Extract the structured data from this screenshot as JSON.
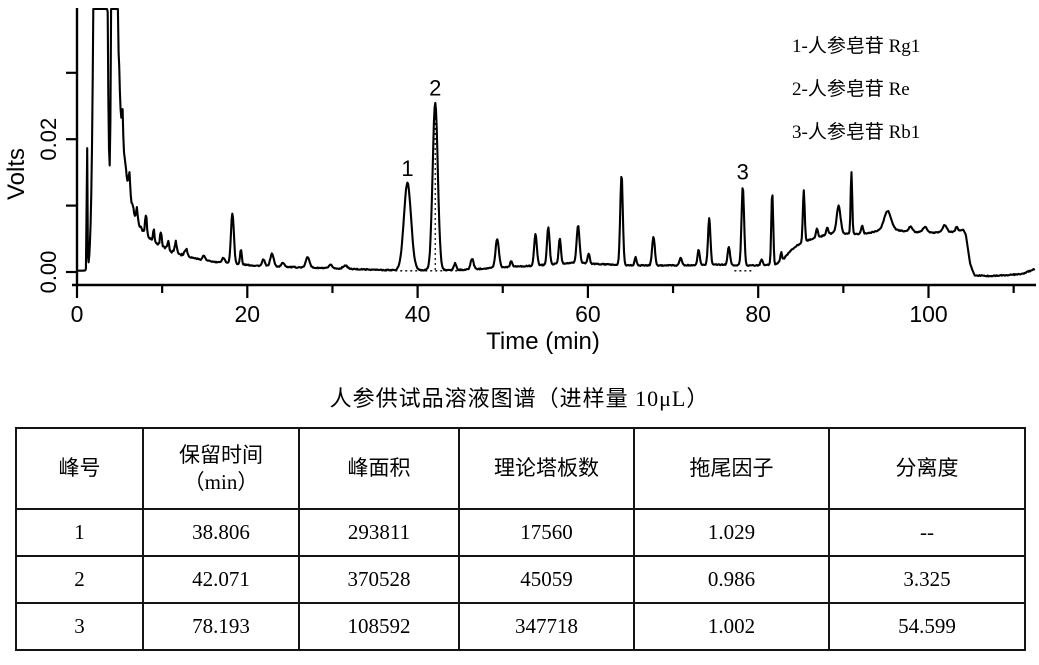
{
  "chart_data": {
    "type": "line",
    "title": "",
    "xlabel": "Time (min)",
    "ylabel": "Volts",
    "xlim": [
      0,
      112.4
    ],
    "ylim": [
      0,
      0.0398
    ],
    "grid": false,
    "line_color": "#000000",
    "legend_position": "top-right",
    "legend": [
      "1-人参皂苷 Rg1",
      "2-人参皂苷 Re",
      "3-人参皂苷 Rb1"
    ],
    "x_ticks": [
      {
        "t": 0,
        "label": "0"
      },
      {
        "t": 10
      },
      {
        "t": 20,
        "label": "20"
      },
      {
        "t": 30
      },
      {
        "t": 40,
        "label": "40"
      },
      {
        "t": 50
      },
      {
        "t": 60,
        "label": "60"
      },
      {
        "t": 70
      },
      {
        "t": 80,
        "label": "80"
      },
      {
        "t": 90
      },
      {
        "t": 100,
        "label": "100"
      },
      {
        "t": 110
      }
    ],
    "y_ticks": [
      {
        "v": 0.0,
        "label": "0.00"
      },
      {
        "v": 0.01
      },
      {
        "v": 0.02,
        "label": "0.02"
      },
      {
        "v": 0.03
      }
    ],
    "baseline_nodes": [
      [
        0,
        0.0002
      ],
      [
        1.85,
        0.0002
      ],
      [
        4.55,
        0.0005
      ],
      [
        4.95,
        0.0285
      ],
      [
        5.15,
        0.0235
      ],
      [
        5.45,
        0.0185
      ],
      [
        5.9,
        0.014
      ],
      [
        6.4,
        0.0105
      ],
      [
        6.9,
        0.0082
      ],
      [
        7.4,
        0.0068
      ],
      [
        8.0,
        0.0058
      ],
      [
        8.7,
        0.0049
      ],
      [
        9.5,
        0.0042
      ],
      [
        10.3,
        0.0036
      ],
      [
        11.2,
        0.0031
      ],
      [
        12.2,
        0.0027
      ],
      [
        13.4,
        0.0022
      ],
      [
        14.8,
        0.0018
      ],
      [
        16.2,
        0.0015
      ],
      [
        17.6,
        0.0013
      ],
      [
        19.0,
        0.0012
      ],
      [
        20.5,
        0.001
      ],
      [
        22.0,
        0.0009
      ],
      [
        24.0,
        0.0008
      ],
      [
        26.0,
        0.0007
      ],
      [
        28.5,
        0.0006
      ],
      [
        31.0,
        0.0005
      ],
      [
        33.5,
        0.0004
      ],
      [
        36.0,
        0.0003
      ],
      [
        44.5,
        0.0003
      ],
      [
        46.5,
        0.0004
      ],
      [
        48.5,
        0.0006
      ],
      [
        51.0,
        0.0008
      ],
      [
        53.0,
        0.0009
      ],
      [
        55.0,
        0.0011
      ],
      [
        57.0,
        0.0013
      ],
      [
        59.0,
        0.0014
      ],
      [
        61.0,
        0.0012
      ],
      [
        63.0,
        0.0011
      ],
      [
        65.0,
        0.001
      ],
      [
        68.0,
        0.001
      ],
      [
        71.0,
        0.001
      ],
      [
        74.0,
        0.0011
      ],
      [
        76.0,
        0.0011
      ],
      [
        78.0,
        0.001
      ],
      [
        80.0,
        0.001
      ],
      [
        82.0,
        0.0011
      ],
      [
        83.0,
        0.002
      ],
      [
        83.8,
        0.0032
      ],
      [
        84.6,
        0.004
      ],
      [
        85.5,
        0.0046
      ],
      [
        86.3,
        0.005
      ],
      [
        87.2,
        0.0053
      ],
      [
        88.2,
        0.0057
      ],
      [
        89.2,
        0.006
      ],
      [
        90.2,
        0.0058
      ],
      [
        91.5,
        0.0057
      ],
      [
        92.8,
        0.0058
      ],
      [
        94.0,
        0.0062
      ],
      [
        95.2,
        0.0066
      ],
      [
        96.3,
        0.0063
      ],
      [
        97.5,
        0.0061
      ],
      [
        99.0,
        0.006
      ],
      [
        100.5,
        0.0059
      ],
      [
        102.0,
        0.0061
      ],
      [
        103.2,
        0.006
      ],
      [
        104.1,
        0.0064
      ],
      [
        104.4,
        0.0055
      ],
      [
        104.9,
        0.0012
      ],
      [
        105.4,
        -0.0005
      ],
      [
        107.0,
        -0.0006
      ],
      [
        109.0,
        -0.0005
      ],
      [
        111.0,
        -0.0003
      ],
      [
        112.4,
        0.0004
      ]
    ],
    "peaks": [
      {
        "t": 1.18,
        "h": 0.02,
        "w": 0.045
      },
      {
        "t": 2.75,
        "h": 0.3,
        "w": 0.42
      },
      {
        "t": 4.38,
        "h": 0.3,
        "w": 0.19
      },
      {
        "t": 5.35,
        "h": 0.0045,
        "w": 0.07
      },
      {
        "t": 6.15,
        "h": 0.0028,
        "w": 0.08
      },
      {
        "t": 7.05,
        "h": 0.0019,
        "w": 0.08
      },
      {
        "t": 8.1,
        "h": 0.003,
        "w": 0.1
      },
      {
        "t": 9.0,
        "h": 0.0018,
        "w": 0.09
      },
      {
        "t": 9.85,
        "h": 0.0022,
        "w": 0.1
      },
      {
        "t": 10.7,
        "h": 0.0012,
        "w": 0.1
      },
      {
        "t": 11.6,
        "h": 0.0016,
        "w": 0.12
      },
      {
        "t": 12.8,
        "h": 0.0011,
        "w": 0.15
      },
      {
        "t": 14.9,
        "h": 0.0007,
        "w": 0.15
      },
      {
        "t": 17.2,
        "h": 0.0008,
        "w": 0.18
      },
      {
        "t": 18.25,
        "h": 0.0076,
        "w": 0.17
      },
      {
        "t": 19.25,
        "h": 0.0022,
        "w": 0.1
      },
      {
        "t": 21.9,
        "h": 0.001,
        "w": 0.15
      },
      {
        "t": 22.9,
        "h": 0.0019,
        "w": 0.2
      },
      {
        "t": 24.2,
        "h": 0.0006,
        "w": 0.18
      },
      {
        "t": 27.1,
        "h": 0.0016,
        "w": 0.22
      },
      {
        "t": 29.8,
        "h": 0.0005,
        "w": 0.2
      },
      {
        "t": 31.5,
        "h": 0.0005,
        "w": 0.25
      },
      {
        "t": 38.81,
        "h": 0.0131,
        "w": 0.42,
        "label": "1"
      },
      {
        "t": 42.07,
        "h": 0.0252,
        "w": 0.3,
        "label": "2"
      },
      {
        "t": 44.4,
        "h": 0.001,
        "w": 0.14
      },
      {
        "t": 46.4,
        "h": 0.0016,
        "w": 0.18
      },
      {
        "t": 49.35,
        "h": 0.0043,
        "w": 0.2
      },
      {
        "t": 51.0,
        "h": 0.0009,
        "w": 0.12
      },
      {
        "t": 53.85,
        "h": 0.0047,
        "w": 0.16
      },
      {
        "t": 55.35,
        "h": 0.0056,
        "w": 0.15
      },
      {
        "t": 56.7,
        "h": 0.0038,
        "w": 0.13
      },
      {
        "t": 58.85,
        "h": 0.0056,
        "w": 0.17
      },
      {
        "t": 60.1,
        "h": 0.0015,
        "w": 0.12
      },
      {
        "t": 63.95,
        "h": 0.0136,
        "w": 0.15
      },
      {
        "t": 65.6,
        "h": 0.0012,
        "w": 0.12
      },
      {
        "t": 67.7,
        "h": 0.0043,
        "w": 0.16
      },
      {
        "t": 70.9,
        "h": 0.0012,
        "w": 0.14
      },
      {
        "t": 73.0,
        "h": 0.0023,
        "w": 0.13
      },
      {
        "t": 74.25,
        "h": 0.0071,
        "w": 0.14
      },
      {
        "t": 76.55,
        "h": 0.0027,
        "w": 0.14
      },
      {
        "t": 78.19,
        "h": 0.0119,
        "w": 0.15,
        "label": "3"
      },
      {
        "t": 80.4,
        "h": 0.0009,
        "w": 0.12
      },
      {
        "t": 81.65,
        "h": 0.0109,
        "w": 0.11
      },
      {
        "t": 82.7,
        "h": 0.0013,
        "w": 0.09
      },
      {
        "t": 85.35,
        "h": 0.0078,
        "w": 0.11
      },
      {
        "t": 86.9,
        "h": 0.0013,
        "w": 0.12
      },
      {
        "t": 88.1,
        "h": 0.001,
        "w": 0.12
      },
      {
        "t": 89.45,
        "h": 0.004,
        "w": 0.22
      },
      {
        "t": 90.95,
        "h": 0.0094,
        "w": 0.09
      },
      {
        "t": 92.2,
        "h": 0.0012,
        "w": 0.12
      },
      {
        "t": 95.2,
        "h": 0.0026,
        "w": 0.4
      },
      {
        "t": 97.9,
        "h": 0.0008,
        "w": 0.2
      },
      {
        "t": 99.6,
        "h": 0.0008,
        "w": 0.25
      },
      {
        "t": 101.9,
        "h": 0.001,
        "w": 0.22
      },
      {
        "t": 103.3,
        "h": 0.0007,
        "w": 0.15
      }
    ],
    "integration_baselines": [
      {
        "t1": 36.2,
        "t2": 44.9
      },
      {
        "t1": 77.2,
        "t2": 79.3
      }
    ],
    "drop_lines": [
      {
        "t": 42.07,
        "v_top": 0.0254
      }
    ]
  },
  "table": {
    "title": "人参供试品溶液图谱（进样量 10μL）",
    "headers": [
      [
        "峰号"
      ],
      [
        "保留时间",
        "（min）"
      ],
      [
        "峰面积"
      ],
      [
        "理论塔板数"
      ],
      [
        "拖尾因子"
      ],
      [
        "分离度"
      ]
    ],
    "rows": [
      [
        "1",
        "38.806",
        "293811",
        "17560",
        "1.029",
        "--"
      ],
      [
        "2",
        "42.071",
        "370528",
        "45059",
        "0.986",
        "3.325"
      ],
      [
        "3",
        "78.193",
        "108592",
        "347718",
        "1.002",
        "54.599"
      ]
    ]
  }
}
